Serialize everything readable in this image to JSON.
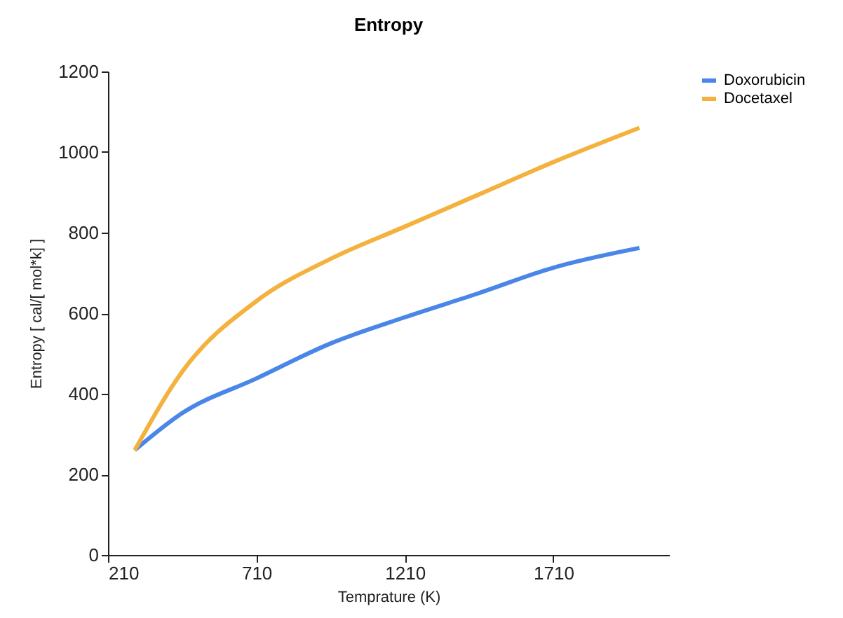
{
  "chart_data": {
    "type": "line",
    "title": "Entropy",
    "xlabel": "Temprature (K)",
    "ylabel": "Entropy [ cal/[ mol*k] ]",
    "x": [
      300,
      460,
      710,
      960,
      1210,
      1460,
      1710,
      2000
    ],
    "series": [
      {
        "name": "Doxorubicin",
        "color": "#4a86e8",
        "values": [
          260,
          352,
          438,
          525,
          590,
          650,
          713,
          762
        ]
      },
      {
        "name": "Docetaxel",
        "color": "#f4b13e",
        "values": [
          260,
          455,
          630,
          735,
          815,
          895,
          975,
          1060
        ]
      }
    ],
    "xlim": [
      210,
      2100
    ],
    "xticks": [
      210,
      710,
      1210,
      1710
    ],
    "ylim": [
      0,
      1200
    ],
    "yticks": [
      0,
      200,
      400,
      600,
      800,
      1000,
      1200
    ],
    "grid": false,
    "legend": "top right",
    "marker": "none",
    "line_style": "solid"
  }
}
